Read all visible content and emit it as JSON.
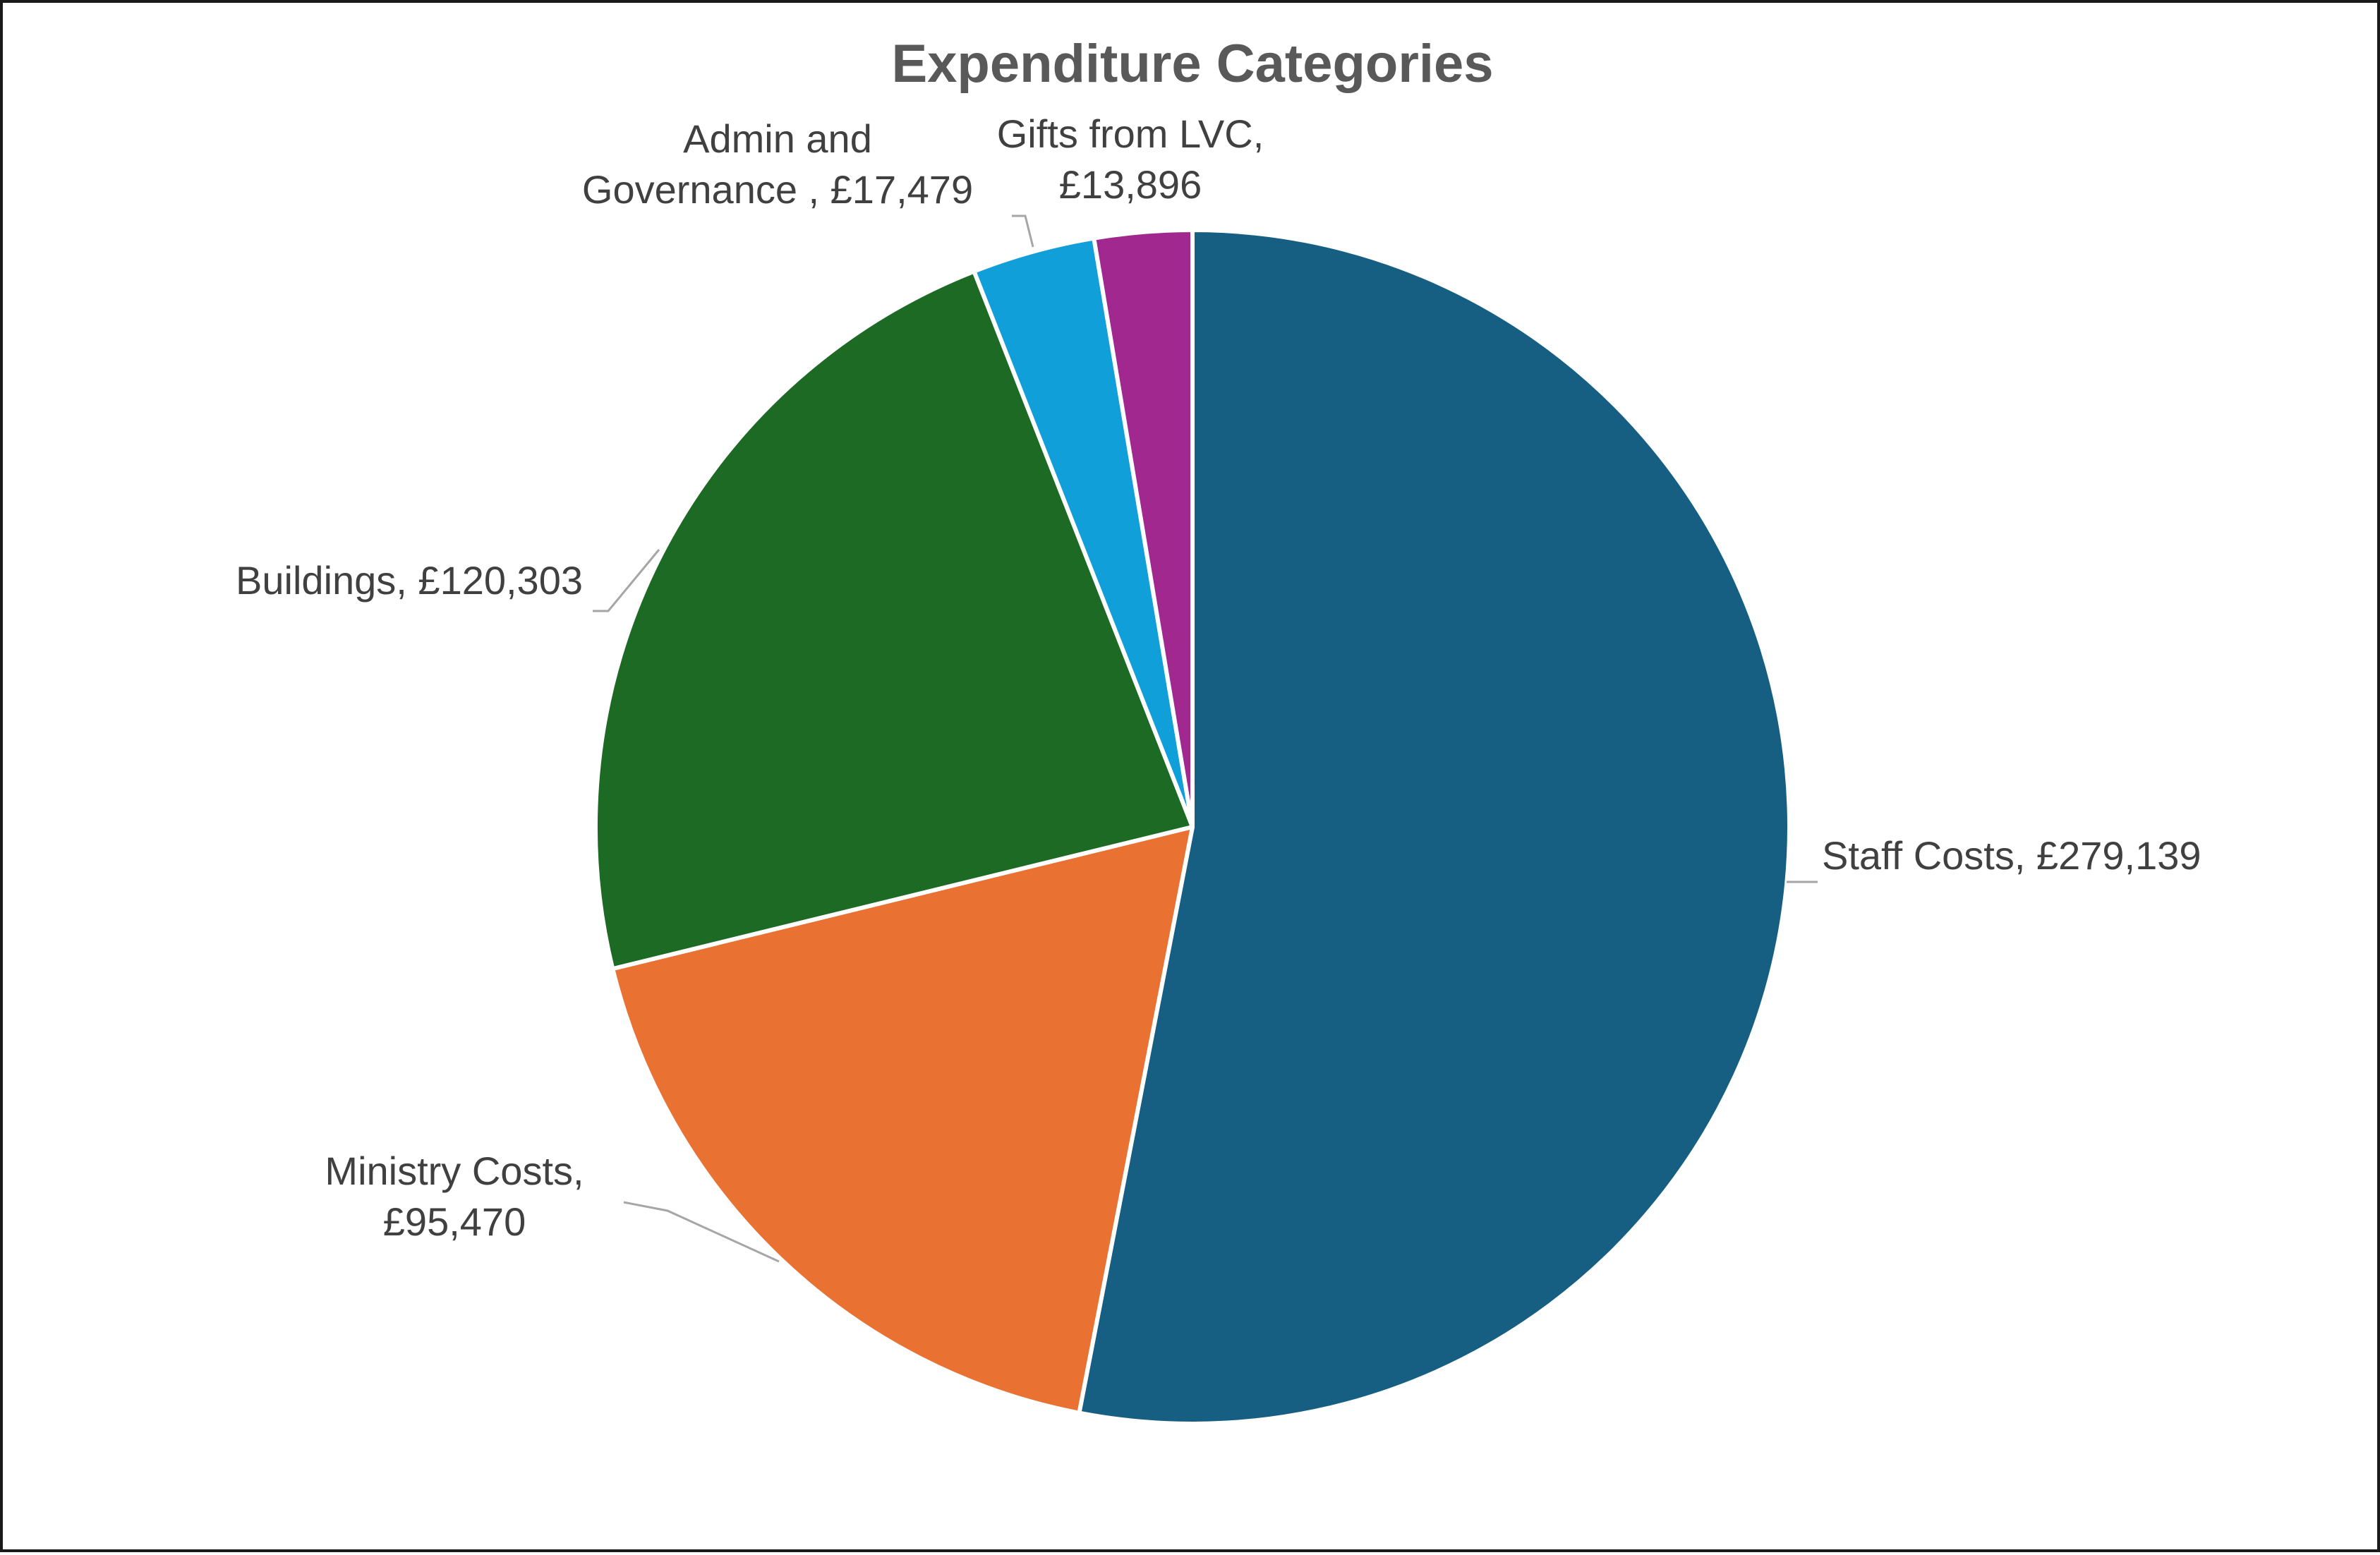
{
  "chart_data": {
    "type": "pie",
    "title": "Expenditure Categories",
    "start_angle_deg": 0,
    "direction": "clockwise",
    "legend": "none",
    "slices": [
      {
        "name": "Staff Costs",
        "value": 279139,
        "value_label": "£279,139",
        "color": "#175F82",
        "label_lines": [
          "Staff Costs, £279,139"
        ]
      },
      {
        "name": "Ministry Costs",
        "value": 95470,
        "value_label": "£95,470",
        "color": "#E97132",
        "label_lines": [
          "Ministry Costs,",
          "£95,470"
        ]
      },
      {
        "name": "Buildings",
        "value": 120303,
        "value_label": "£120,303",
        "color": "#1C6A24",
        "label_lines": [
          "Buildings, £120,303"
        ]
      },
      {
        "name": "Admin and Governance ",
        "value": 17479,
        "value_label": "£17,479",
        "color": "#119FD9",
        "label_lines": [
          "Admin and",
          "Governance , £17,479"
        ]
      },
      {
        "name": "Gifts from LVC",
        "value": 13896,
        "value_label": "£13,896",
        "color": "#A0288E",
        "label_lines": [
          "Gifts from LVC,",
          "£13,896"
        ]
      }
    ]
  }
}
